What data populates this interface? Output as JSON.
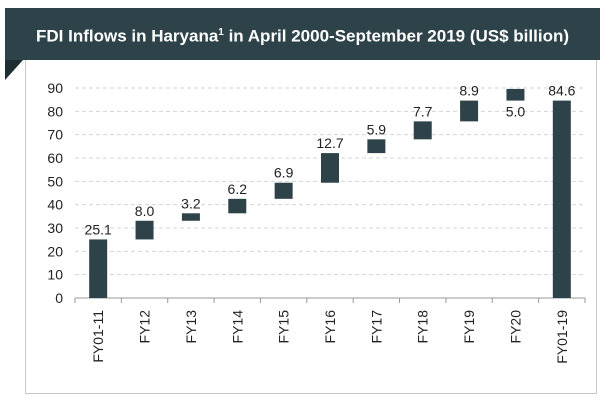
{
  "title_main": "FDI Inflows in Haryana",
  "title_sup": "1",
  "title_rest": " in April 2000-September 2019 (US$ billion)",
  "chart_data": {
    "type": "waterfall",
    "title": "FDI Inflows in Haryana1 in April 2000-September 2019 (US$ billion)",
    "categories": [
      "FY01-11",
      "FY12",
      "FY13",
      "FY14",
      "FY15",
      "FY16",
      "FY17",
      "FY18",
      "FY19",
      "FY20",
      "FY01-19"
    ],
    "values": [
      25.1,
      8.0,
      3.2,
      6.2,
      6.9,
      12.7,
      5.9,
      7.7,
      8.9,
      5.0,
      84.6
    ],
    "labels": [
      "25.1",
      "8.0",
      "3.2",
      "6.2",
      "6.9",
      "12.7",
      "5.9",
      "7.7",
      "8.9",
      "5.0",
      "84.6"
    ],
    "totals": [
      "FY01-11",
      "FY01-19"
    ],
    "ylim": [
      0,
      90
    ],
    "yticks": [
      "0",
      "10",
      "20",
      "30",
      "40",
      "50",
      "60",
      "70",
      "80",
      "90"
    ],
    "grid": true,
    "bar_color": "#2e4349",
    "banner_color": "#2e4349"
  }
}
